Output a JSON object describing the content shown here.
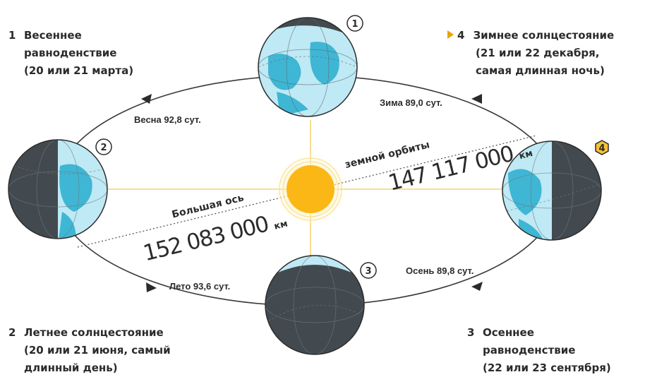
{
  "points": {
    "spring": {
      "number": "1",
      "lines": [
        "Весеннее",
        "равноденствие",
        "(20 или 21 марта)"
      ]
    },
    "summer": {
      "number": "2",
      "lines": [
        "Летнее солнцестояние",
        "(20 или 21 июня, самый",
        "длинный день)"
      ]
    },
    "autumn": {
      "number": "3",
      "lines": [
        "Осеннее",
        "равноденствие",
        "(22 или 23 сентября)"
      ]
    },
    "winter": {
      "number": "4",
      "lines": [
        "Зимнее солнцестояние",
        "(21 или 22 декабря,",
        "самая длинная ночь)"
      ]
    }
  },
  "seasons": {
    "spring": "Весна 92,8 сут.",
    "winter": "Зима 89,0 сут.",
    "summer": "Лето 93,6 сут.",
    "autumn": "Осень 89,8 сут."
  },
  "axis": {
    "major_axis_label": "Большая ось",
    "orbit_label": "земной орбиты",
    "aphelion_distance": "152 083 000",
    "perihelion_distance": "147 117 000",
    "unit": "км"
  },
  "earth_badges": [
    "1",
    "2",
    "3",
    "4"
  ],
  "colors": {
    "sun": "#fbb716",
    "sun_rays": "#f3cf5e",
    "ocean": "#bfe9f4",
    "land": "#3fb6d4",
    "night": "#434a4f",
    "orbit": "#3a3a3a",
    "highlight": "#e8a400"
  },
  "icons": [
    "earth-globe-icon",
    "sun-icon",
    "orbit-arrow-icon",
    "highlight-triangle-icon"
  ]
}
